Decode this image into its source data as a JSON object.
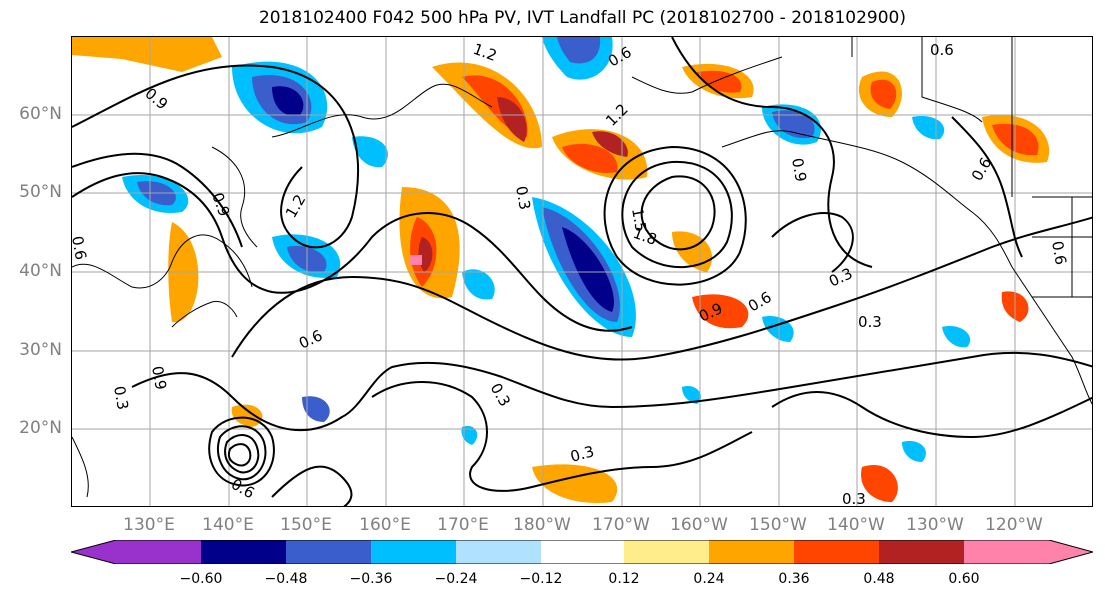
{
  "title": "2018102400 F042 500 hPa PV, IVT Landfall PC (2018102700 - 2018102900)",
  "axes": {
    "lat_labels": [
      "60°N",
      "50°N",
      "40°N",
      "30°N",
      "20°N"
    ],
    "lon_labels": [
      "130°E",
      "140°E",
      "150°E",
      "160°E",
      "170°E",
      "180°W",
      "170°W",
      "160°W",
      "150°W",
      "140°W",
      "130°W",
      "120°W"
    ]
  },
  "contour_labels": [
    "0.9",
    "1.2",
    "0.6",
    "0.6",
    "1.2",
    "0.9",
    "1.2",
    "0.9",
    "0.3",
    "1.5",
    "1.8",
    "0.6",
    "0.6",
    "0.9",
    "0.6",
    "0.3",
    "0.3",
    "0.3",
    "0.3",
    "0.3",
    "0.6",
    "0.6",
    "0.3",
    "0.9",
    "0.6"
  ],
  "colorbar": {
    "ticks": [
      "−0.60",
      "−0.48",
      "−0.36",
      "−0.24",
      "−0.12",
      "0.12",
      "0.24",
      "0.36",
      "0.48",
      "0.60"
    ],
    "colors": [
      "#9932CC",
      "#00008B",
      "#3A5FCD",
      "#00BFFF",
      "#B0E2FF",
      "#FFFFFF",
      "#FFEC8B",
      "#FFA500",
      "#FF4500",
      "#B22222",
      "#FF82AB"
    ]
  }
}
